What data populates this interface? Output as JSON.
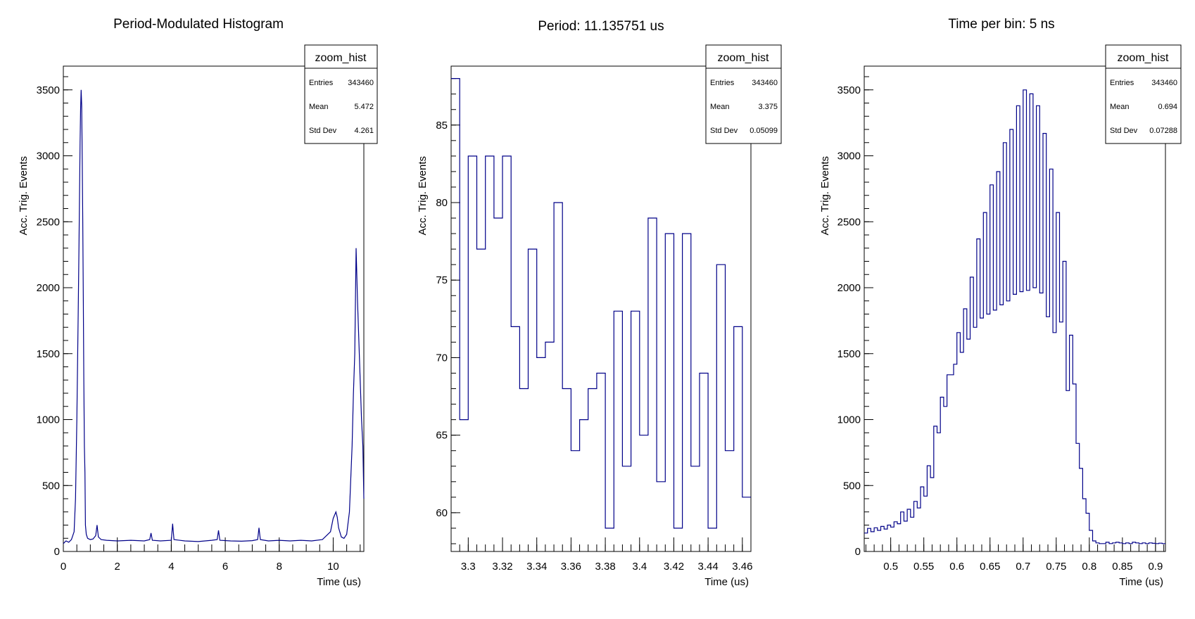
{
  "chart_data": [
    {
      "type": "line",
      "title": "Period-Modulated Histogram",
      "xlabel": "Time (us)",
      "ylabel": "Acc. Trig. Events",
      "xlim": [
        0,
        11.135751
      ],
      "ylim": [
        0,
        3680
      ],
      "xticks": [
        0,
        2,
        4,
        6,
        8,
        10
      ],
      "yticks": [
        0,
        500,
        1000,
        1500,
        2000,
        2500,
        3000,
        3500
      ],
      "xtick_labels": [
        "0",
        "2",
        "4",
        "6",
        "8",
        "10"
      ],
      "ytick_labels": [
        "0",
        "500",
        "1000",
        "1500",
        "2000",
        "2500",
        "3000",
        "3500"
      ],
      "stats": {
        "name": "zoom_hist",
        "entries_label": "Entries",
        "entries": "343460",
        "mean_label": "Mean",
        "mean": "5.472",
        "std_label": "Std Dev",
        "std": "4.261"
      },
      "series": [
        {
          "x": [
            0,
            0.1,
            0.2,
            0.3,
            0.4,
            0.45,
            0.5,
            0.55,
            0.58,
            0.6,
            0.62,
            0.64,
            0.66,
            0.68,
            0.7,
            0.72,
            0.74,
            0.76,
            0.78,
            0.8,
            0.82,
            0.85,
            0.9,
            1.0,
            1.1,
            1.2,
            1.25,
            1.3,
            1.4,
            1.6,
            2.0,
            2.5,
            3.0,
            3.2,
            3.25,
            3.3,
            3.6,
            4.0,
            4.05,
            4.1,
            4.5,
            5.0,
            5.5,
            5.7,
            5.75,
            5.8,
            6.2,
            6.6,
            7.0,
            7.2,
            7.25,
            7.3,
            7.6,
            8.0,
            8.4,
            8.8,
            9.2,
            9.6,
            9.9,
            10.0,
            10.1,
            10.15,
            10.2,
            10.3,
            10.4,
            10.5,
            10.6,
            10.7,
            10.75,
            10.8,
            10.85,
            10.9,
            10.95,
            11.0,
            11.05,
            11.1,
            11.135
          ],
          "y": [
            60,
            80,
            70,
            90,
            150,
            400,
            1000,
            1800,
            2300,
            2700,
            3100,
            3350,
            3500,
            3380,
            3000,
            2500,
            1900,
            1300,
            800,
            600,
            200,
            130,
            100,
            90,
            95,
            120,
            200,
            110,
            90,
            85,
            80,
            85,
            80,
            90,
            140,
            85,
            80,
            85,
            210,
            90,
            80,
            75,
            85,
            90,
            160,
            85,
            80,
            78,
            82,
            90,
            180,
            90,
            80,
            85,
            80,
            85,
            80,
            90,
            150,
            250,
            300,
            260,
            180,
            110,
            100,
            130,
            300,
            800,
            1200,
            1500,
            2300,
            1900,
            1600,
            1300,
            1000,
            800,
            400
          ]
        }
      ]
    },
    {
      "type": "bar",
      "title": "Period: 11.135751 us",
      "xlabel": "Time (us)",
      "ylabel": "Acc. Trig. Events",
      "xlim": [
        3.29,
        3.465
      ],
      "ylim": [
        57.5,
        88.8
      ],
      "xticks": [
        3.3,
        3.32,
        3.34,
        3.36,
        3.38,
        3.4,
        3.42,
        3.44,
        3.46
      ],
      "yticks": [
        60,
        65,
        70,
        75,
        80,
        85
      ],
      "xtick_labels": [
        "3.3",
        "3.32",
        "3.34",
        "3.36",
        "3.38",
        "3.4",
        "3.42",
        "3.44",
        "3.46"
      ],
      "ytick_labels": [
        "60",
        "65",
        "70",
        "75",
        "80",
        "85"
      ],
      "stats": {
        "name": "zoom_hist",
        "entries_label": "Entries",
        "entries": "343460",
        "mean_label": "Mean",
        "mean": "3.375",
        "std_label": "Std Dev",
        "std": "0.05099"
      },
      "bin_start": 3.29,
      "bin_width": 0.005,
      "values": [
        88,
        66,
        83,
        77,
        83,
        79,
        83,
        72,
        68,
        77,
        70,
        71,
        80,
        68,
        64,
        66,
        68,
        69,
        59,
        73,
        63,
        73,
        65,
        79,
        62,
        78,
        59,
        78,
        63,
        69,
        59,
        76,
        64,
        72,
        61
      ]
    },
    {
      "type": "bar",
      "title": "Time per bin: 5 ns",
      "xlabel": "Time (us)",
      "ylabel": "Acc. Trig. Events",
      "xlim": [
        0.46,
        0.915
      ],
      "ylim": [
        0,
        3680
      ],
      "xticks": [
        0.5,
        0.55,
        0.6,
        0.65,
        0.7,
        0.75,
        0.8,
        0.85,
        0.9
      ],
      "yticks": [
        0,
        500,
        1000,
        1500,
        2000,
        2500,
        3000,
        3500
      ],
      "xtick_labels": [
        "0.5",
        "0.55",
        "0.6",
        "0.65",
        "0.7",
        "0.75",
        "0.8",
        "0.85",
        "0.9"
      ],
      "ytick_labels": [
        "0",
        "500",
        "1000",
        "1500",
        "2000",
        "2500",
        "3000",
        "3500"
      ],
      "stats": {
        "name": "zoom_hist",
        "entries_label": "Entries",
        "entries": "343460",
        "mean_label": "Mean",
        "mean": "0.694",
        "std_label": "Std Dev",
        "std": "0.07288"
      },
      "bin_start": 0.46,
      "bin_width": 0.005,
      "values": [
        140,
        175,
        150,
        180,
        160,
        190,
        170,
        200,
        185,
        225,
        210,
        300,
        230,
        320,
        260,
        380,
        330,
        490,
        420,
        650,
        560,
        950,
        900,
        1170,
        1100,
        1340,
        1340,
        1420,
        1660,
        1510,
        1840,
        1610,
        2080,
        1700,
        2370,
        1770,
        2570,
        1800,
        2780,
        1830,
        2880,
        1870,
        3100,
        1900,
        3200,
        1950,
        3380,
        1970,
        3500,
        1980,
        3470,
        2000,
        3380,
        1960,
        3170,
        1780,
        2900,
        1660,
        2570,
        1740,
        2200,
        1220,
        1640,
        1270,
        820,
        630,
        400,
        290,
        160,
        80,
        65,
        60,
        60,
        70,
        60,
        65,
        70,
        65,
        60,
        65,
        60,
        70,
        65,
        60,
        65,
        60,
        65,
        62,
        60,
        63,
        60
      ]
    }
  ]
}
